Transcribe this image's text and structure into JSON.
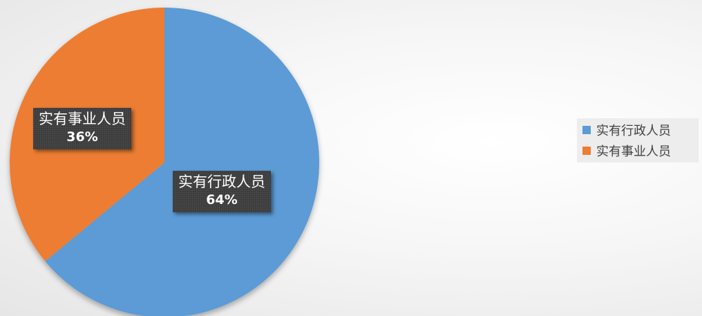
{
  "chart_data": {
    "type": "pie",
    "title": "",
    "slices": [
      {
        "name": "实有行政人员",
        "value": 64,
        "label": "64%",
        "color": "#5B9BD5"
      },
      {
        "name": "实有事业人员",
        "value": 36,
        "label": "36%",
        "color": "#ED7D31"
      }
    ],
    "legend_position": "right"
  }
}
